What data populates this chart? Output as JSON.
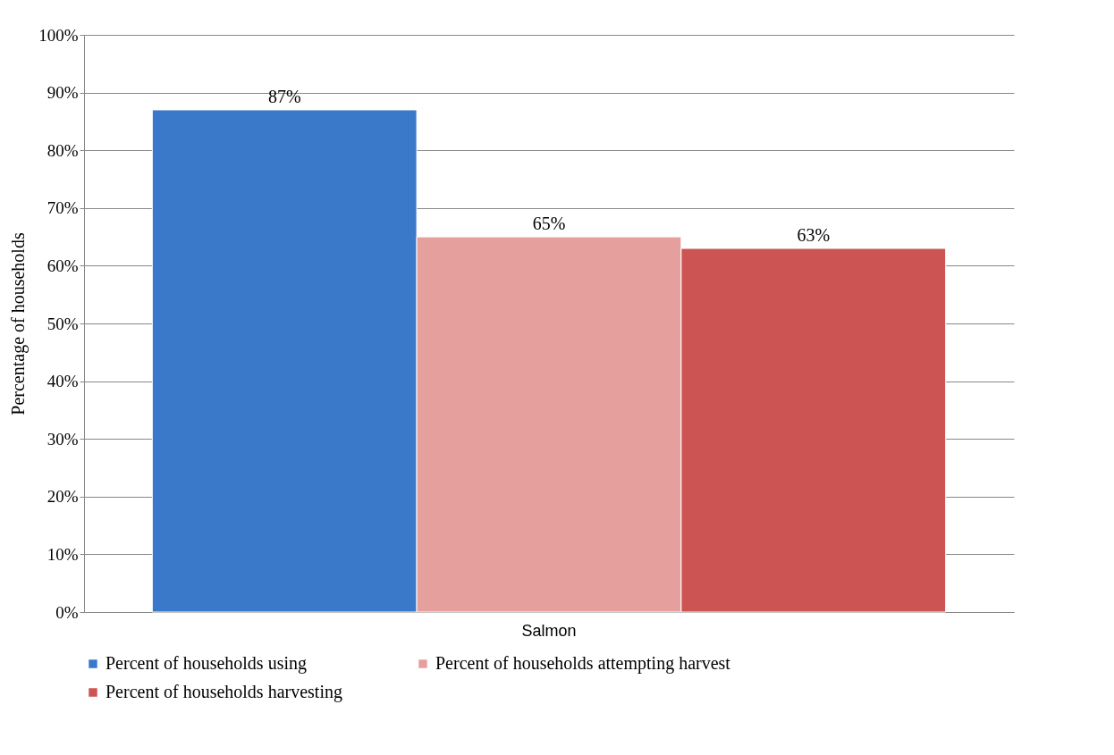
{
  "chart_data": {
    "type": "bar",
    "ylabel": "Percentage of households",
    "categories": [
      "Salmon"
    ],
    "series": [
      {
        "name": "Percent of households using",
        "color": "#3a78c9",
        "values": [
          87
        ],
        "value_labels": [
          "87%"
        ]
      },
      {
        "name": "Percent of households attempting harvest",
        "color": "#e5a09e",
        "values": [
          65
        ],
        "value_labels": [
          "65%"
        ]
      },
      {
        "name": "Percent of households harvesting",
        "color": "#cc5452",
        "values": [
          63
        ],
        "value_labels": [
          "63%"
        ]
      }
    ],
    "ylim": [
      0,
      100
    ],
    "yticks": [
      {
        "value": 0,
        "label": "0%"
      },
      {
        "value": 10,
        "label": "10%"
      },
      {
        "value": 20,
        "label": "20%"
      },
      {
        "value": 30,
        "label": "30%"
      },
      {
        "value": 40,
        "label": "40%"
      },
      {
        "value": 50,
        "label": "50%"
      },
      {
        "value": 60,
        "label": "60%"
      },
      {
        "value": 70,
        "label": "70%"
      },
      {
        "value": 80,
        "label": "80%"
      },
      {
        "value": 90,
        "label": "90%"
      },
      {
        "value": 100,
        "label": "100%"
      }
    ],
    "grid": "y",
    "legend": "bottom"
  }
}
